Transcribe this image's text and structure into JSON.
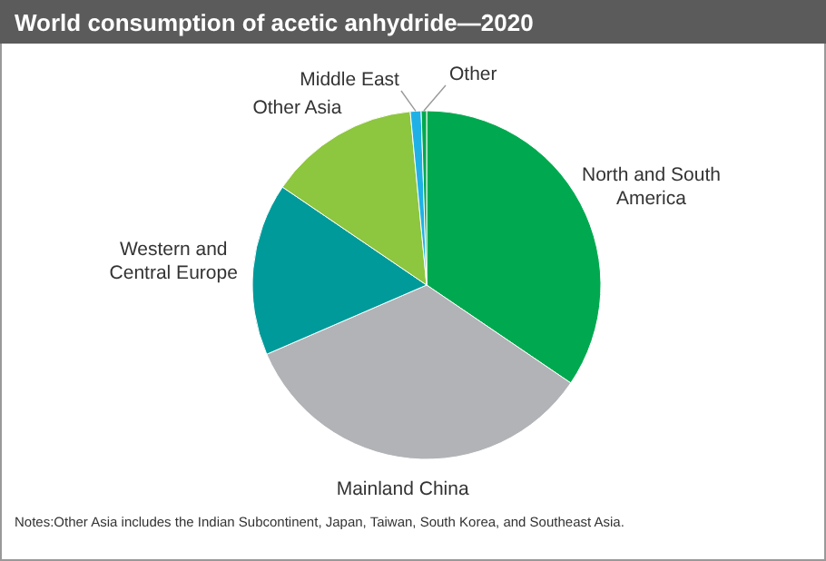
{
  "chart_data": {
    "type": "pie",
    "title": "World consumption  of acetic anhydride—2020",
    "categories": [
      "North and South America",
      "Mainland China",
      "Western and Central Europe",
      "Other Asia",
      "Middle East",
      "Other"
    ],
    "values": [
      34.5,
      34,
      16,
      14,
      1,
      0.5
    ],
    "colors": [
      "#00a94f",
      "#b1b3b6",
      "#009a9a",
      "#8dc63f",
      "#1fb1e6",
      "#00a94f"
    ],
    "annotations": [
      "Notes:Other Asia includes the Indian Subcontinent,  Japan, Taiwan, South Korea, and Southeast Asia."
    ]
  }
}
